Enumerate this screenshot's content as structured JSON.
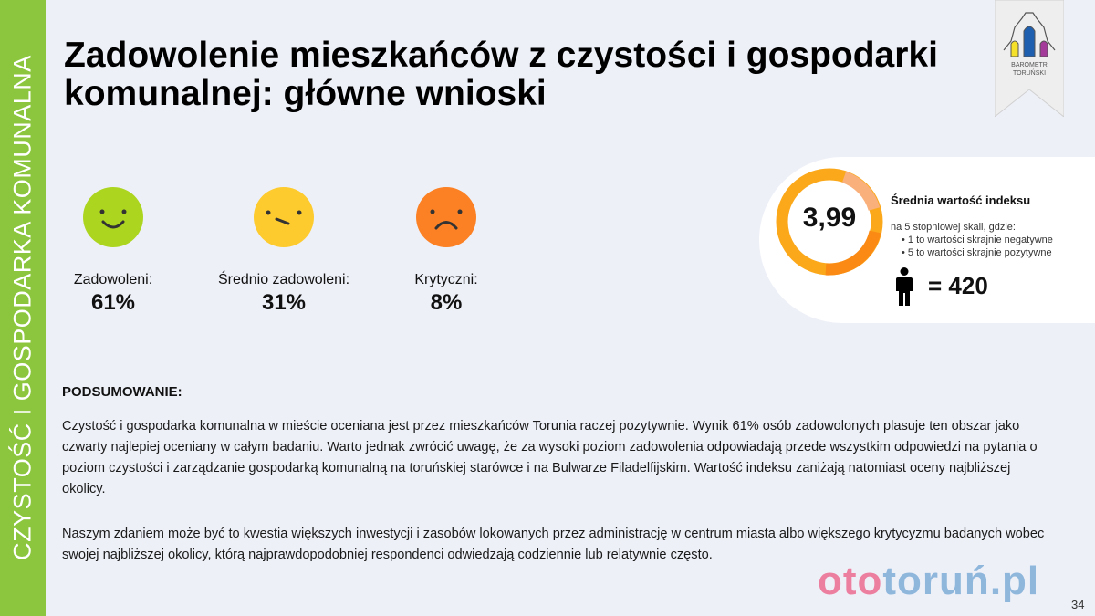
{
  "sidebar": {
    "label": "CZYSTOŚĆ I GOSPODARKA KOMUNALNA"
  },
  "title": "Zadowolenie mieszkańców z czystości i gospodarki komunalnej: główne wnioski",
  "logo": {
    "line1": "BAROMETR",
    "line2": "TORUŃSKI"
  },
  "faces": [
    {
      "label": "Zadowoleni:",
      "value": "61%",
      "color": "#acd51f",
      "icon": "happy-face-icon"
    },
    {
      "label": "Średnio zadowoleni:",
      "value": "31%",
      "color": "#fdcb2e",
      "icon": "neutral-face-icon"
    },
    {
      "label": "Krytyczni:",
      "value": "8%",
      "color": "#fb8124",
      "icon": "sad-face-icon"
    }
  ],
  "index": {
    "value": "3,99",
    "title": "Średnia wartość indeksu",
    "desc": "na 5 stopniowej skali, gdzie:",
    "bullets": [
      "1 to wartości skrajnie negatywne",
      "5 to wartości skrajnie pozytywne"
    ],
    "count": "= 420"
  },
  "summary": {
    "heading": "PODSUMOWANIE:",
    "paragraphs": [
      "Czystość i gospodarka komunalna w mieście oceniana jest przez mieszkańców Torunia raczej pozytywnie. Wynik 61% osób zadowolonych plasuje ten obszar jako czwarty najlepiej oceniany w całym badaniu. Warto jednak zwrócić uwagę, że za wysoki poziom zadowolenia odpowiadają przede wszystkim odpowiedzi na pytania o poziom czystości i zarządzanie gospodarką komunalną na toruńskiej starówce i na Bulwarze Filadelfijskim. Wartość indeksu zaniżają natomiast oceny najbliższej okolicy.",
      "Naszym zdaniem może być to kwestia większych inwestycji i zasobów lokowanych przez administrację w centrum miasta albo większego krytycyzmu badanych wobec swojej najbliższej okolicy, którą najprawdopodobniej respondenci odwiedzają codziennie lub relatywnie często."
    ]
  },
  "brand": {
    "part1": "oto",
    "part2": "toruń.pl"
  },
  "page_number": "34"
}
